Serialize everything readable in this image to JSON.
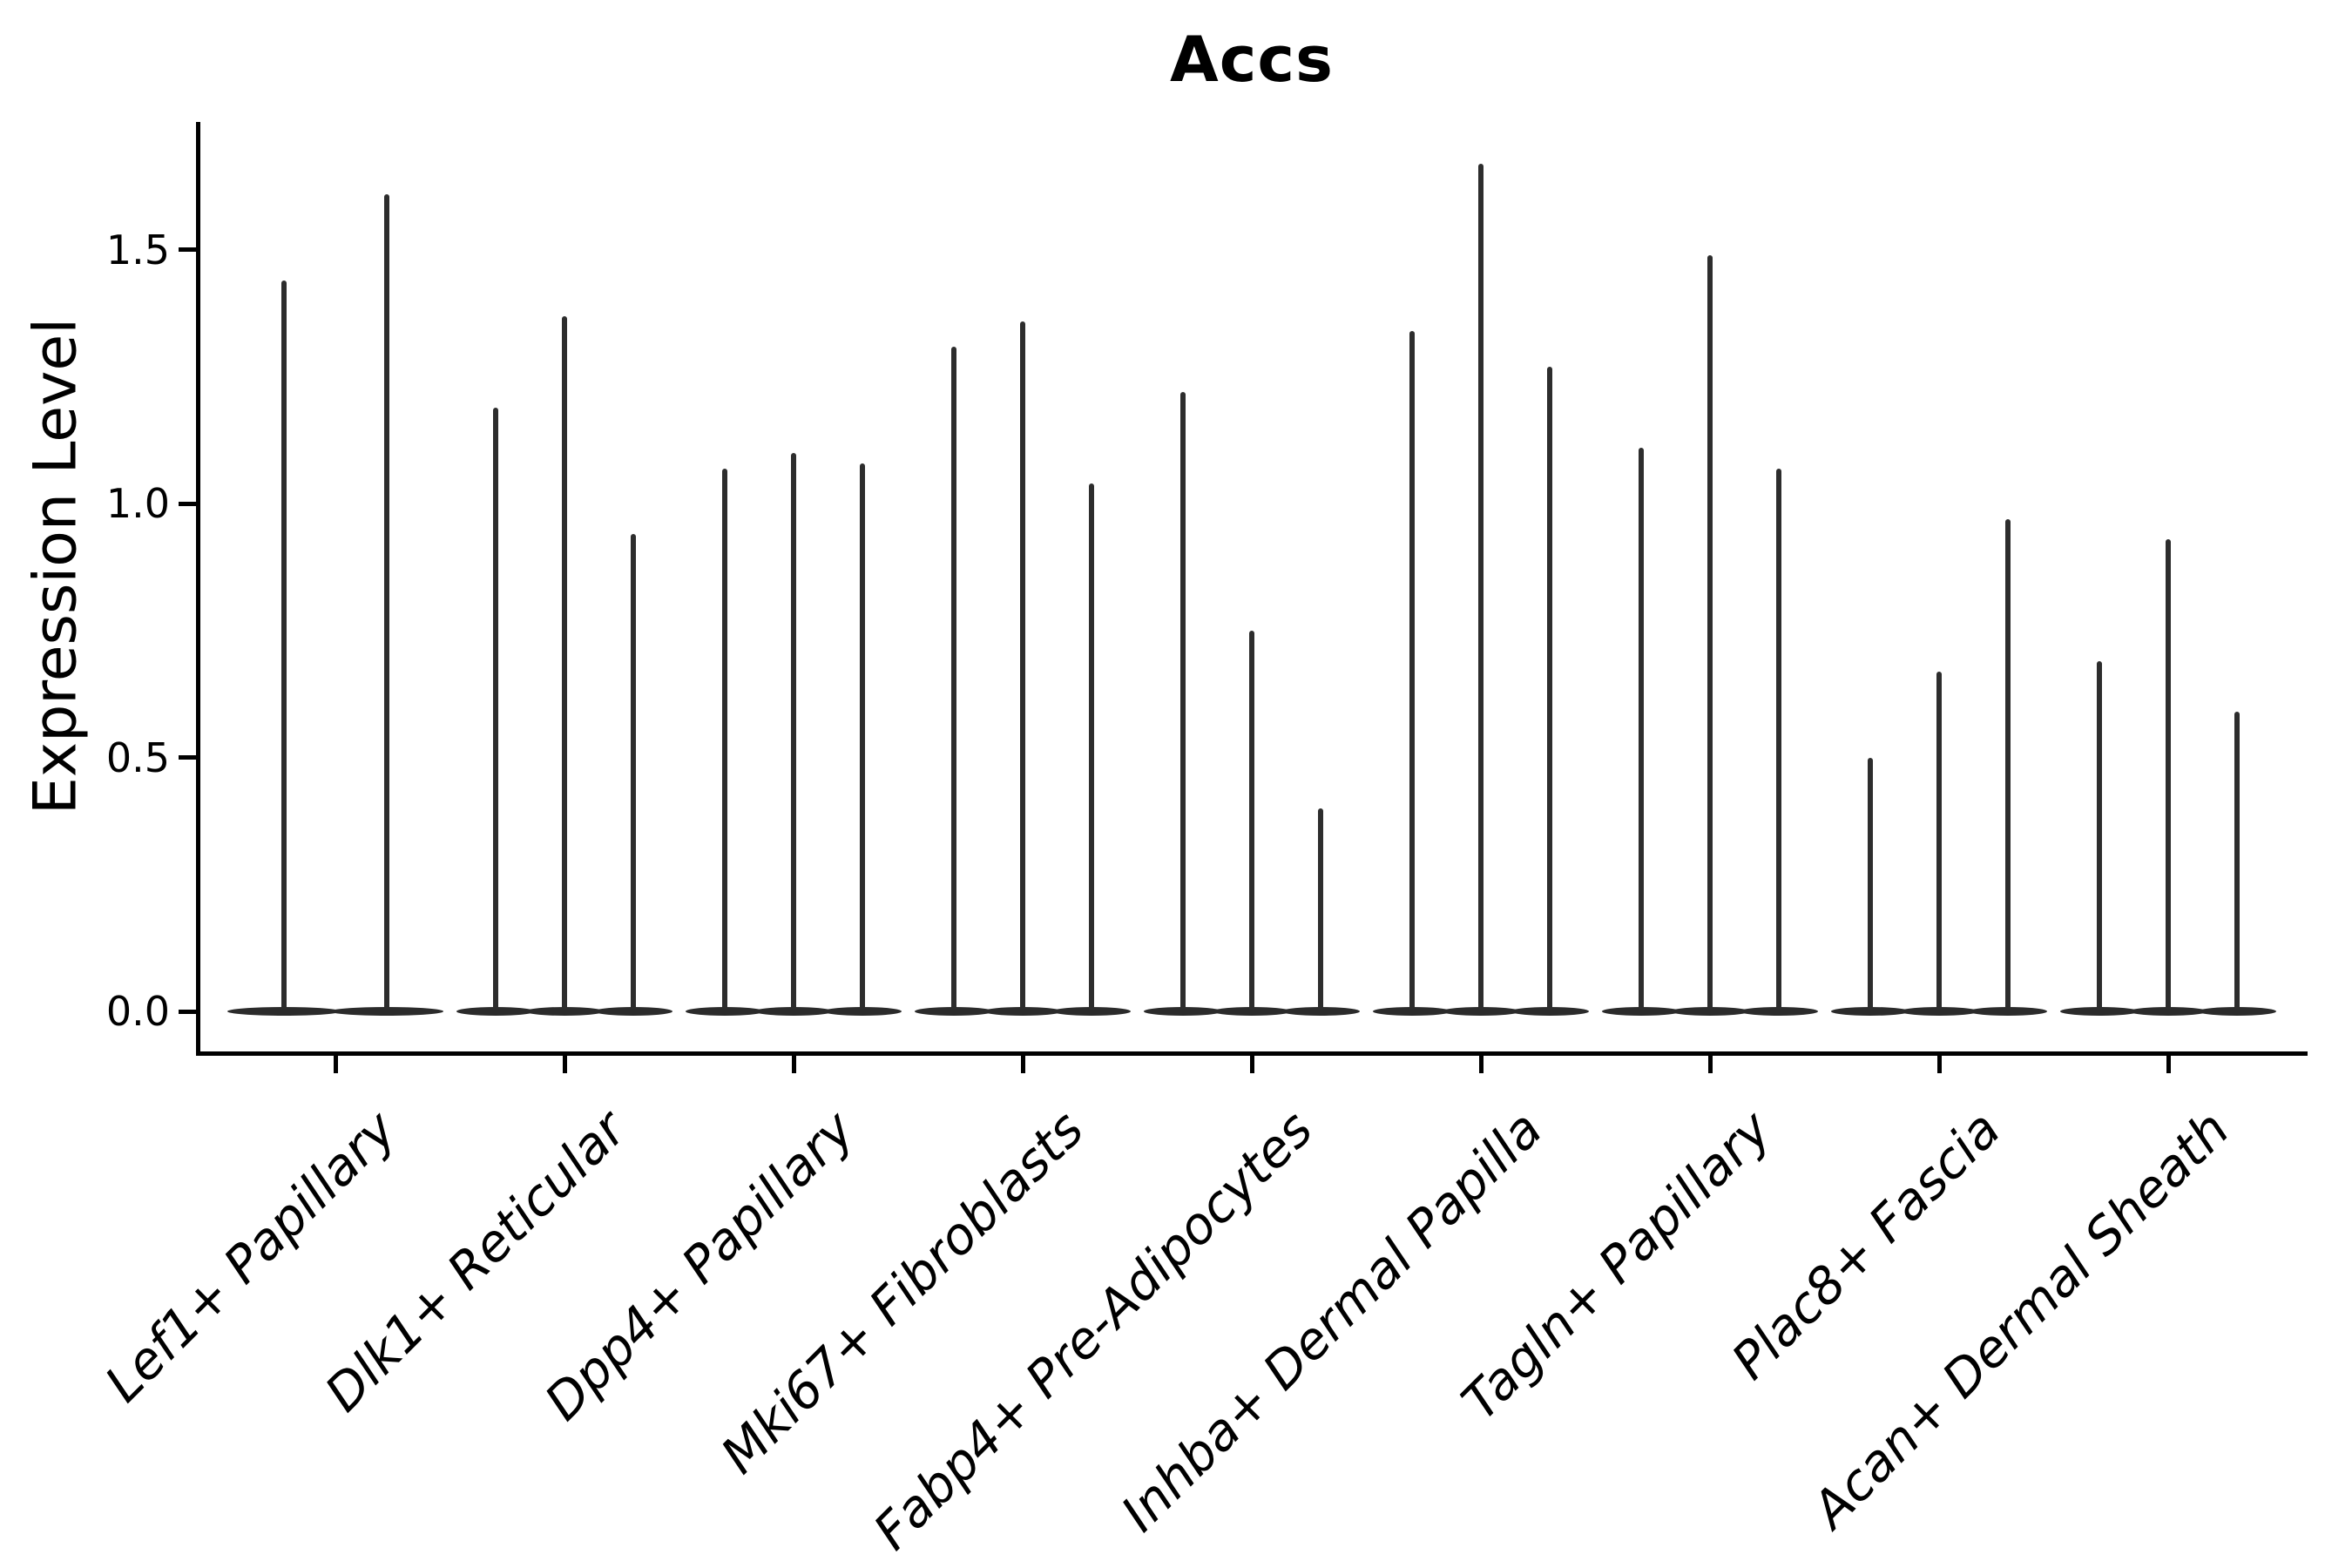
{
  "title": "Accs",
  "chart_data": {
    "type": "violin",
    "title": "Accs",
    "ylabel": "Expression Level",
    "xlabel": "",
    "ylim": [
      -0.08,
      1.75
    ],
    "yticks": [
      0.0,
      0.5,
      1.0,
      1.5
    ],
    "ytick_labels": [
      "0.0",
      "0.5",
      "1.0",
      "1.5"
    ],
    "grid": false,
    "legend": "none",
    "violin_color": "#2b2b2b",
    "categories": [
      "Lef1+ Papillary",
      "Dlk1+ Reticular",
      "Dpp4+ Papillary",
      "Mki67+ Fibroblasts",
      "Fabp4+ Pre-Adipocytes",
      "Inhba+ Dermal Papilla",
      "Tagln+ Papillary",
      "Plac8+ Fascia",
      "Acan+ Dermal Sheath"
    ],
    "groups": [
      {
        "label": "Lef1+ Papillary",
        "violin_maxima": [
          1.44,
          1.61
        ]
      },
      {
        "label": "Dlk1+ Reticular",
        "violin_maxima": [
          1.19,
          1.37,
          0.94
        ]
      },
      {
        "label": "Dpp4+ Papillary",
        "violin_maxima": [
          1.07,
          1.1,
          1.08
        ]
      },
      {
        "label": "Mki67+ Fibroblasts",
        "violin_maxima": [
          1.31,
          1.36,
          1.04
        ]
      },
      {
        "label": "Fabp4+ Pre-Adipocytes",
        "violin_maxima": [
          1.22,
          0.75,
          0.4
        ]
      },
      {
        "label": "Inhba+ Dermal Papilla",
        "violin_maxima": [
          1.34,
          1.67,
          1.27
        ]
      },
      {
        "label": "Tagln+ Papillary",
        "violin_maxima": [
          1.11,
          1.49,
          1.07
        ]
      },
      {
        "label": "Plac8+ Fascia",
        "violin_maxima": [
          0.5,
          0.67,
          0.97
        ]
      },
      {
        "label": "Acan+ Dermal Sheath",
        "violin_maxima": [
          0.69,
          0.93,
          0.59
        ]
      }
    ],
    "violin_baseline_value": 0.0
  }
}
